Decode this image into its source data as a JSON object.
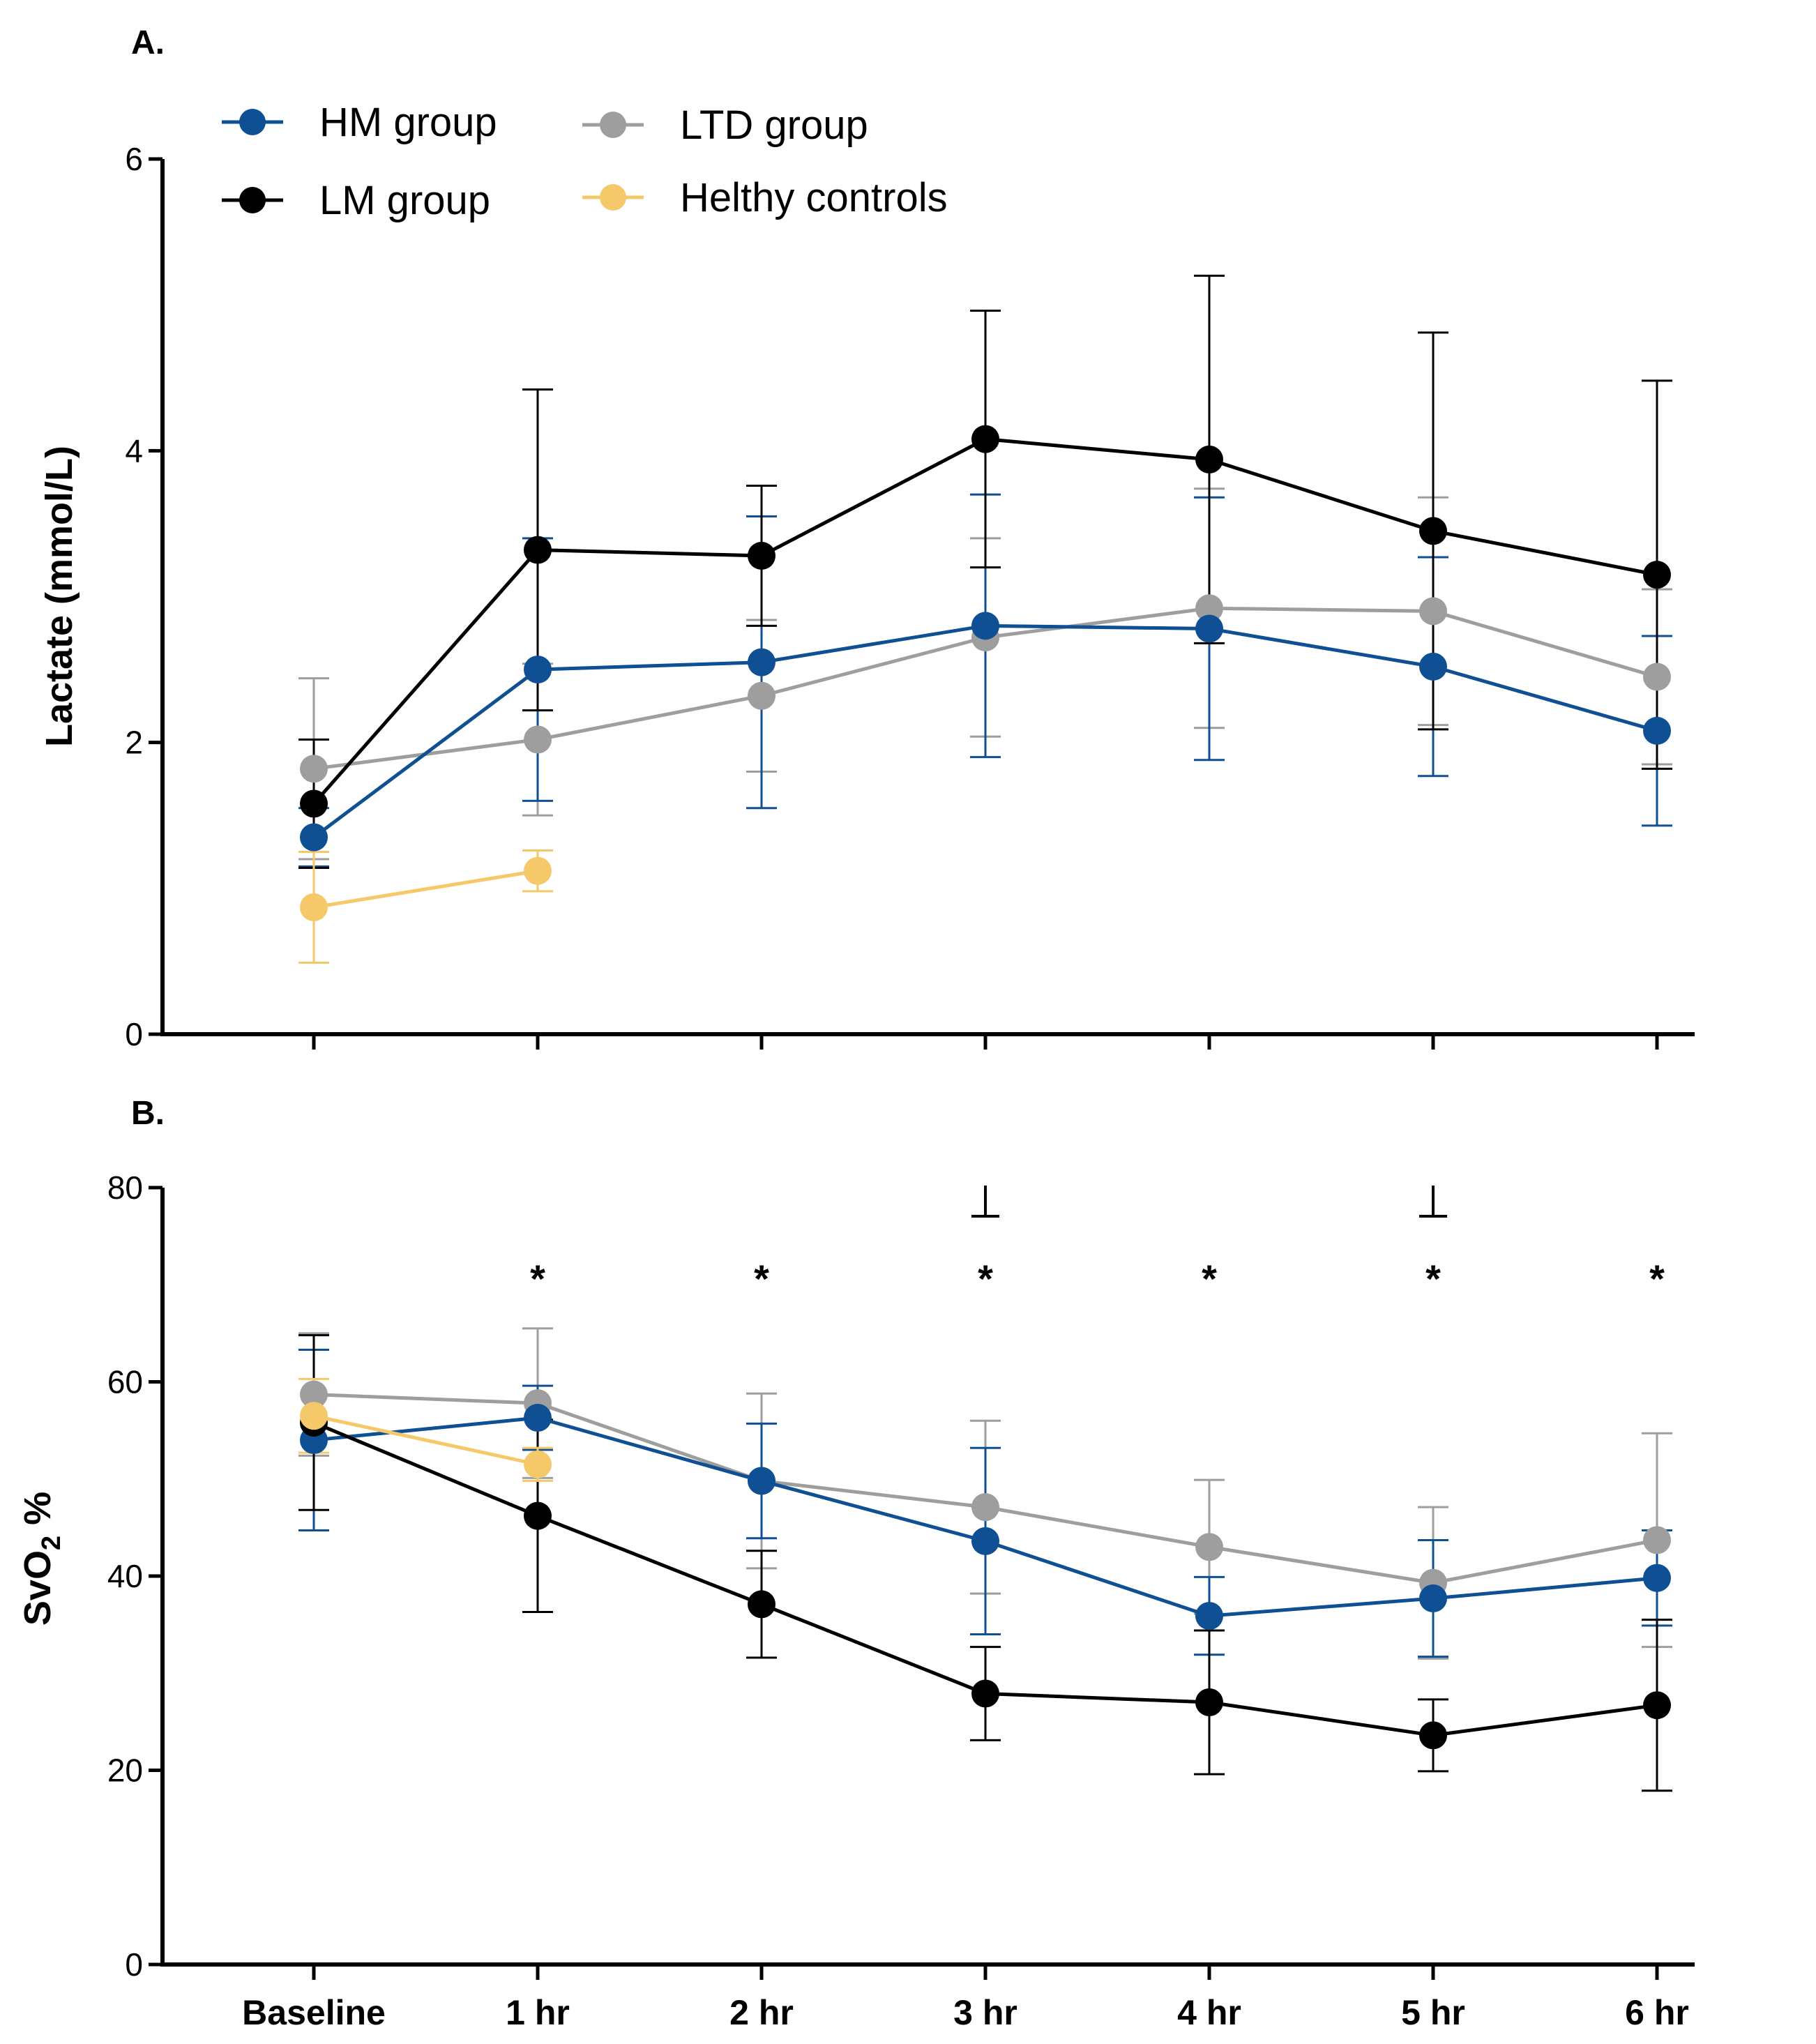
{
  "chart_data": [
    {
      "panel": "A.",
      "type": "line",
      "ylabel": "Lactate (mmol/L)",
      "ylim": [
        0,
        6
      ],
      "yticks": [
        "0",
        "2",
        "4",
        "6"
      ],
      "categories": [
        "Baseline",
        "1 hr",
        "2 hr",
        "3 hr",
        "4 hr",
        "5 hr",
        "6 hr"
      ],
      "series": [
        {
          "name": "HM group",
          "color": "#0F4F94",
          "values": [
            1.35,
            2.5,
            2.55,
            2.8,
            2.78,
            2.52,
            2.08
          ],
          "errors": [
            0.2,
            0.9,
            1.0,
            0.9,
            0.9,
            0.75,
            0.65
          ]
        },
        {
          "name": "LTD group",
          "color": "#9E9E9E",
          "values": [
            1.82,
            2.02,
            2.32,
            2.72,
            2.92,
            2.9,
            2.45
          ],
          "errors": [
            0.62,
            0.52,
            0.52,
            0.68,
            0.82,
            0.78,
            0.6
          ]
        },
        {
          "name": "LM group",
          "color": "#000000",
          "values": [
            1.58,
            3.32,
            3.28,
            4.08,
            3.94,
            3.45,
            3.15
          ],
          "errors": [
            0.44,
            1.1,
            0.48,
            0.88,
            1.26,
            1.36,
            1.33
          ]
        },
        {
          "name": "Helthy controls",
          "color": "#F5C969",
          "values": [
            0.87,
            1.12,
            null,
            null,
            null,
            null,
            null
          ],
          "errors": [
            0.38,
            0.14,
            null,
            null,
            null,
            null,
            null
          ]
        }
      ]
    },
    {
      "panel": "B.",
      "type": "line",
      "ylabel": "SvO",
      "ylabel_sub": "2",
      "ylabel_suffix": " %",
      "ylim": [
        0,
        80
      ],
      "yticks": [
        "0",
        "20",
        "40",
        "60",
        "80"
      ],
      "categories": [
        "Baseline",
        "1 hr",
        "2 hr",
        "3 hr",
        "4 hr",
        "5 hr",
        "6 hr"
      ],
      "series": [
        {
          "name": "HM group",
          "color": "#0F4F94",
          "values": [
            54,
            56.3,
            49.8,
            43.6,
            35.9,
            37.7,
            39.8
          ],
          "errors": [
            9.3,
            3.3,
            5.9,
            9.6,
            4.0,
            6.0,
            4.9
          ]
        },
        {
          "name": "LTD group",
          "color": "#9E9E9E",
          "values": [
            58.7,
            57.8,
            49.8,
            47.1,
            43.0,
            39.3,
            43.7
          ],
          "errors": [
            6.3,
            7.7,
            9.0,
            8.9,
            6.9,
            7.8,
            11.0
          ]
        },
        {
          "name": "LM group",
          "color": "#000000",
          "values": [
            55.8,
            46.2,
            37.1,
            27.9,
            27.0,
            23.6,
            26.7
          ],
          "errors": [
            9.0,
            9.9,
            5.5,
            4.8,
            7.4,
            3.7,
            8.8
          ]
        },
        {
          "name": "Helthy controls",
          "color": "#F5C969",
          "values": [
            56.5,
            51.5,
            null,
            null,
            null,
            null,
            null
          ],
          "errors": [
            3.8,
            1.7,
            null,
            null,
            null,
            null,
            null
          ]
        }
      ],
      "annotations": {
        "star": "*",
        "star_at": [
          "1 hr",
          "2 hr",
          "3 hr",
          "4 hr",
          "5 hr",
          "6 hr"
        ],
        "dagger_at": [
          "3 hr",
          "5 hr"
        ]
      }
    }
  ],
  "legend": [
    {
      "label": "HM group",
      "color": "#0F4F94"
    },
    {
      "label": "LM group",
      "color": "#000000"
    },
    {
      "label": "LTD group",
      "color": "#9E9E9E"
    },
    {
      "label": "Helthy controls",
      "color": "#F5C969"
    }
  ]
}
